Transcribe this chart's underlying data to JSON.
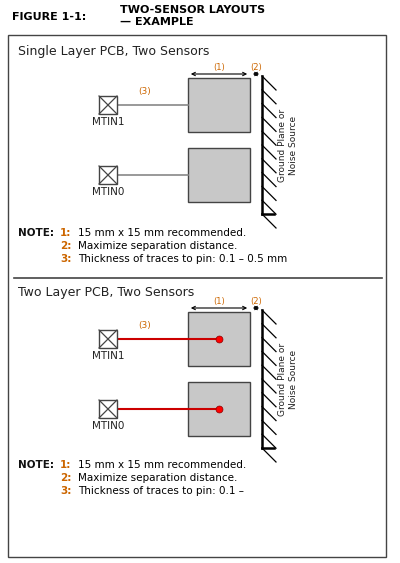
{
  "figure_title": "FIGURE 1-1:",
  "figure_title2": "TWO-SENSOR LAYOUTS",
  "figure_title3": "— EXAMPLE",
  "section1_title": "Single Layer PCB, Two Sensors",
  "section2_title": "Two Layer PCB, Two Sensors",
  "note_label": "NOTE:",
  "notes1": [
    [
      "1:",
      "15 mm x 15 mm recommended."
    ],
    [
      "2:",
      "Maximize separation distance."
    ],
    [
      "3:",
      "Thickness of traces to pin: 0.1 – 0.5 mm"
    ]
  ],
  "notes2": [
    [
      "1:",
      "15 mm x 15 mm recommended."
    ],
    [
      "2:",
      "Maximize separation distance."
    ],
    [
      "3:",
      "Thickness of traces to pin: 0.1 –"
    ]
  ],
  "mtin1_label": "MTIN1",
  "mtin0_label": "MTIN0",
  "ground_label1": "Ground Plane or",
  "ground_label2": "Noise Source",
  "ann1": "(1)",
  "ann2": "(2)",
  "ann3": "(3)",
  "bg_color": "#ffffff",
  "box_fill": "#c8c8c8",
  "box_edge": "#444444",
  "trace_gray": "#888888",
  "trace_red": "#cc0000",
  "gp_color": "#000000",
  "note_num_color": "#cc6600",
  "note_text_color": "#000000",
  "title_color": "#000000"
}
